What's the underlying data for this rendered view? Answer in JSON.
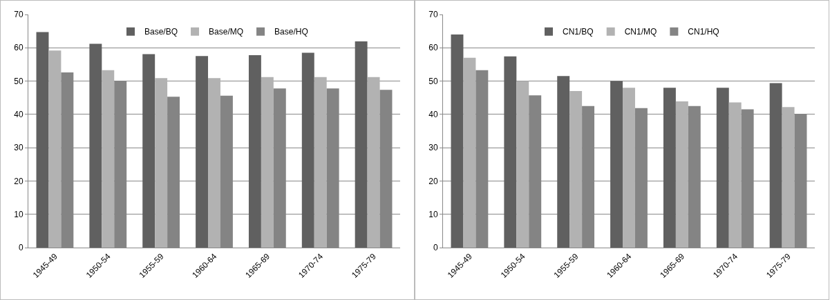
{
  "chart_data": [
    {
      "type": "bar",
      "categories": [
        "1945-49",
        "1950-54",
        "1955-59",
        "1960-64",
        "1965-69",
        "1970-74",
        "1975-79"
      ],
      "series": [
        {
          "name": "Base/BQ",
          "color": "#606060",
          "values": [
            64.7,
            61.2,
            58.1,
            57.5,
            57.8,
            58.5,
            61.9
          ]
        },
        {
          "name": "Base/MQ",
          "color": "#b2b2b2",
          "values": [
            59.2,
            53.3,
            50.9,
            50.9,
            51.2,
            51.2,
            51.2
          ]
        },
        {
          "name": "Base/HQ",
          "color": "#848484",
          "values": [
            52.6,
            50.0,
            45.3,
            45.6,
            47.8,
            47.8,
            47.4
          ]
        }
      ],
      "ylim": [
        0,
        70
      ],
      "yticks": [
        0,
        10,
        20,
        30,
        40,
        50,
        60,
        70
      ],
      "grid": "y",
      "legend": "top"
    },
    {
      "type": "bar",
      "categories": [
        "1945-49",
        "1950-54",
        "1955-59",
        "1960-64",
        "1965-69",
        "1970-74",
        "1975-79"
      ],
      "series": [
        {
          "name": "CN1/BQ",
          "color": "#606060",
          "values": [
            64.0,
            57.4,
            51.5,
            50.0,
            48.0,
            48.0,
            49.4
          ]
        },
        {
          "name": "CN1/MQ",
          "color": "#b2b2b2",
          "values": [
            57.0,
            50.0,
            47.0,
            48.0,
            43.9,
            43.6,
            42.2
          ]
        },
        {
          "name": "CN1/HQ",
          "color": "#848484",
          "values": [
            53.3,
            45.7,
            42.5,
            41.9,
            42.5,
            41.5,
            40.1
          ]
        }
      ],
      "ylim": [
        0,
        70
      ],
      "yticks": [
        0,
        10,
        20,
        30,
        40,
        50,
        60,
        70
      ],
      "grid": "y",
      "legend": "top"
    }
  ]
}
